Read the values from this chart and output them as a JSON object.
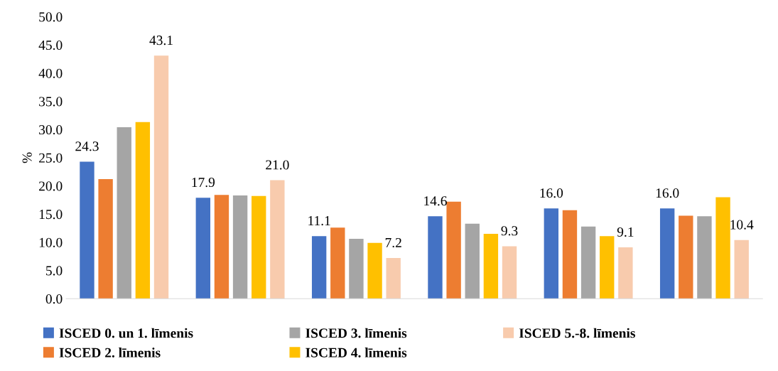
{
  "chart_data": {
    "type": "bar",
    "ylabel": "%",
    "categories": [
      null,
      null,
      null,
      null,
      null,
      null
    ],
    "series": [
      {
        "name": "ISCED 0. un 1. līmenis",
        "color": "#4472c4",
        "values": [
          24.3,
          17.9,
          11.1,
          14.6,
          16.0,
          16.0
        ],
        "value_labels": [
          "24.3",
          "17.9",
          "11.1",
          "14.6",
          "16.0",
          "16.0"
        ]
      },
      {
        "name": "ISCED 2. līmenis",
        "color": "#ed7d31",
        "values": [
          21.2,
          18.4,
          12.6,
          17.2,
          15.7,
          14.7
        ]
      },
      {
        "name": "ISCED 3. līmenis",
        "color": "#a5a5a5",
        "values": [
          30.4,
          18.3,
          10.6,
          13.3,
          12.8,
          14.6
        ]
      },
      {
        "name": "ISCED 4. līmenis",
        "color": "#ffc000",
        "values": [
          31.3,
          18.2,
          9.9,
          11.5,
          11.1,
          18.0
        ]
      },
      {
        "name": "ISCED 5.-8. līmenis",
        "color": "#f8cbad",
        "values": [
          43.1,
          21.0,
          7.2,
          9.3,
          9.1,
          10.4
        ],
        "value_labels": [
          "43.1",
          "21.0",
          "7.2",
          "9.3",
          "9.1",
          "10.4"
        ]
      }
    ],
    "ylim": [
      0,
      50
    ],
    "yticks": [
      {
        "value": 0,
        "label": "0.0"
      },
      {
        "value": 5,
        "label": "5.0"
      },
      {
        "value": 10,
        "label": "10.0"
      },
      {
        "value": 15,
        "label": "15.0"
      },
      {
        "value": 20,
        "label": "20.0"
      },
      {
        "value": 25,
        "label": "25.0"
      },
      {
        "value": 30,
        "label": "30.0"
      },
      {
        "value": 35,
        "label": "35.0"
      },
      {
        "value": 40,
        "label": "40.0"
      },
      {
        "value": 45,
        "label": "45.0"
      },
      {
        "value": 50,
        "label": "50.0"
      }
    ],
    "legend": "bottom",
    "grid": false
  }
}
